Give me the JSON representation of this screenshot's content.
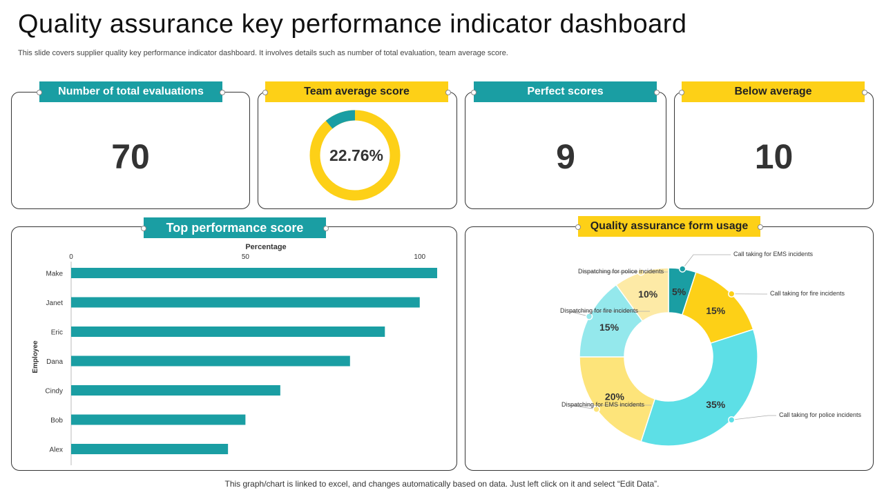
{
  "title": "Quality assurance key performance indicator dashboard",
  "subtitle": "This slide covers supplier quality key performance indicator dashboard. It involves details such as number of total evaluation, team average score.",
  "kpis": {
    "total_evaluations": {
      "label": "Number of total evaluations",
      "value": "70"
    },
    "team_average": {
      "label": "Team average score",
      "value": "22.76%",
      "fraction": 0.2276
    },
    "perfect_scores": {
      "label": "Perfect scores",
      "value": "9"
    },
    "below_average": {
      "label": "Below average",
      "value": "10"
    }
  },
  "colors": {
    "teal": "#1a9ea3",
    "yellow": "#fdd017",
    "light_yellow": "#fde47a",
    "cyan": "#5ddfe6",
    "light_cyan": "#94e8ec",
    "cream": "#fdeaa6"
  },
  "footer": "This graph/chart is linked to excel,  and changes automatically based on data. Just left click on it and select “Edit Data”.",
  "chart_data": [
    {
      "type": "bar",
      "orientation": "horizontal",
      "title": "Top performance score",
      "xlabel": "Percentage",
      "ylabel": "Employee",
      "categories": [
        "Make",
        "Janet",
        "Eric",
        "Dana",
        "Cindy",
        "Bob",
        "Alex"
      ],
      "values": [
        105,
        100,
        90,
        80,
        60,
        50,
        45
      ],
      "xlim": [
        0,
        105
      ],
      "xticks": [
        "0",
        "50",
        "100"
      ],
      "xtick_values": [
        0,
        50,
        100
      ],
      "color": "#1a9ea3"
    },
    {
      "type": "pie",
      "donut": true,
      "title": "Quality assurance form usage",
      "slices": [
        {
          "name": "Call taking for EMS incidents",
          "value": 5,
          "label": "5%",
          "color": "#1a9ea3"
        },
        {
          "name": "Call taking for fire incidents",
          "value": 15,
          "label": "15%",
          "color": "#fdd017"
        },
        {
          "name": "Call taking for police incidents",
          "value": 35,
          "label": "35%",
          "color": "#5ddfe6"
        },
        {
          "name": "Dispatching for EMS  incidents",
          "value": 20,
          "label": "20%",
          "color": "#fde47a"
        },
        {
          "name": "Dispatching for fire incidents",
          "value": 15,
          "label": "15%",
          "color": "#94e8ec"
        },
        {
          "name": "Dispatching for police incidents",
          "value": 10,
          "label": "10%",
          "color": "#fdeaa6"
        }
      ]
    }
  ]
}
